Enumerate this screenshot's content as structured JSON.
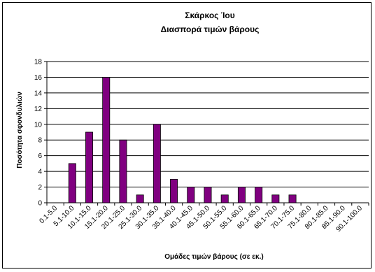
{
  "chart_data": {
    "type": "bar",
    "title_line1": "Σκάρκος Ίου",
    "title_line2": "Διασπορά τιμών βάρους",
    "xlabel": "Ομάδες τιμών βάρους (σε εκ.)",
    "ylabel": "Ποσότητα σφονδυλιών",
    "ylim": [
      0,
      18
    ],
    "y_ticks": [
      0,
      2,
      4,
      6,
      8,
      10,
      12,
      14,
      16,
      18
    ],
    "grid": true,
    "legend": "none",
    "bar_color": "#800080",
    "categories": [
      "0.1-5.0",
      "5.1-10.0",
      "10.1-15.0",
      "15.1-20.0",
      "20.1-25.0",
      "25.1-30.0",
      "30.1-35.0",
      "35.1-40.0",
      "40.1-45.0",
      "45.1-50.0",
      "50.1-55.0",
      "55.1-60.0",
      "60.1-65.0",
      "65.1-70.0",
      "70.1-75.0",
      "75.1-80.0",
      "80.1-85.0",
      "85.1-90.0",
      "90.1-100.0"
    ],
    "values": [
      0,
      5,
      9,
      16,
      8,
      1,
      10,
      3,
      2,
      2,
      1,
      2,
      2,
      1,
      1,
      0,
      0,
      0,
      0
    ]
  }
}
